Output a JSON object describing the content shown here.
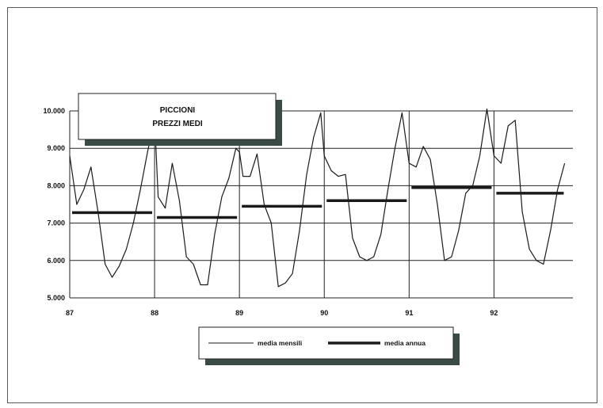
{
  "chart_data": {
    "type": "line",
    "title_lines": [
      "PICCIONI",
      "PREZZI MEDI"
    ],
    "x_tick_labels": [
      "87",
      "88",
      "89",
      "90",
      "91",
      "92"
    ],
    "y_tick_labels": [
      "10.000",
      "9.000",
      "8.000",
      "7.000",
      "6.000",
      "5.000"
    ],
    "ylim": [
      5000,
      10000
    ],
    "y_ticks": [
      5000,
      6000,
      7000,
      8000,
      9000,
      10000
    ],
    "grid": "horizontal",
    "legend_position": "bottom",
    "series": [
      {
        "name": "media mensili",
        "style": "thin",
        "points": [
          [
            87.0,
            8800
          ],
          [
            87.083,
            7500
          ],
          [
            87.167,
            7900
          ],
          [
            87.25,
            8500
          ],
          [
            87.333,
            7300
          ],
          [
            87.417,
            5900
          ],
          [
            87.5,
            5550
          ],
          [
            87.583,
            5850
          ],
          [
            87.667,
            6300
          ],
          [
            87.75,
            7000
          ],
          [
            87.833,
            7900
          ],
          [
            87.917,
            8900
          ],
          [
            88.0,
            9800
          ],
          [
            88.042,
            7700
          ],
          [
            88.125,
            7400
          ],
          [
            88.208,
            8600
          ],
          [
            88.292,
            7600
          ],
          [
            88.375,
            6100
          ],
          [
            88.458,
            5900
          ],
          [
            88.542,
            5350
          ],
          [
            88.625,
            5350
          ],
          [
            88.708,
            6700
          ],
          [
            88.792,
            7700
          ],
          [
            88.875,
            8200
          ],
          [
            88.958,
            9000
          ],
          [
            89.0,
            8900
          ],
          [
            89.042,
            8250
          ],
          [
            89.125,
            8250
          ],
          [
            89.208,
            8850
          ],
          [
            89.292,
            7500
          ],
          [
            89.375,
            7000
          ],
          [
            89.458,
            5300
          ],
          [
            89.542,
            5400
          ],
          [
            89.625,
            5650
          ],
          [
            89.708,
            6800
          ],
          [
            89.792,
            8300
          ],
          [
            89.875,
            9300
          ],
          [
            89.958,
            9950
          ],
          [
            90.0,
            8800
          ],
          [
            90.083,
            8400
          ],
          [
            90.167,
            8250
          ],
          [
            90.25,
            8300
          ],
          [
            90.333,
            6600
          ],
          [
            90.417,
            6100
          ],
          [
            90.5,
            6000
          ],
          [
            90.583,
            6100
          ],
          [
            90.667,
            6700
          ],
          [
            90.75,
            7900
          ],
          [
            90.833,
            9000
          ],
          [
            90.917,
            9950
          ],
          [
            91.0,
            8600
          ],
          [
            91.083,
            8500
          ],
          [
            91.167,
            9050
          ],
          [
            91.25,
            8700
          ],
          [
            91.333,
            7500
          ],
          [
            91.417,
            6000
          ],
          [
            91.5,
            6100
          ],
          [
            91.583,
            6800
          ],
          [
            91.667,
            7800
          ],
          [
            91.75,
            8000
          ],
          [
            91.833,
            8800
          ],
          [
            91.917,
            10050
          ],
          [
            92.0,
            8800
          ],
          [
            92.083,
            8600
          ],
          [
            92.167,
            9600
          ],
          [
            92.25,
            9750
          ],
          [
            92.333,
            7300
          ],
          [
            92.417,
            6300
          ],
          [
            92.5,
            6000
          ],
          [
            92.583,
            5900
          ],
          [
            92.667,
            6800
          ],
          [
            92.75,
            7900
          ],
          [
            92.833,
            8600
          ]
        ]
      },
      {
        "name": "media annua",
        "style": "thick",
        "segments": [
          {
            "x": [
              87.0,
              88.0
            ],
            "y": 7280
          },
          {
            "x": [
              88.0,
              89.0
            ],
            "y": 7150
          },
          {
            "x": [
              89.0,
              90.0
            ],
            "y": 7450
          },
          {
            "x": [
              90.0,
              91.0
            ],
            "y": 7600
          },
          {
            "x": [
              91.0,
              92.0
            ],
            "y": 7950
          },
          {
            "x": [
              92.0,
              92.85
            ],
            "y": 7800
          }
        ]
      }
    ],
    "colors": {
      "line": "#1a1a1a",
      "grid": "#222222",
      "shadow": "#3a4a44"
    }
  }
}
